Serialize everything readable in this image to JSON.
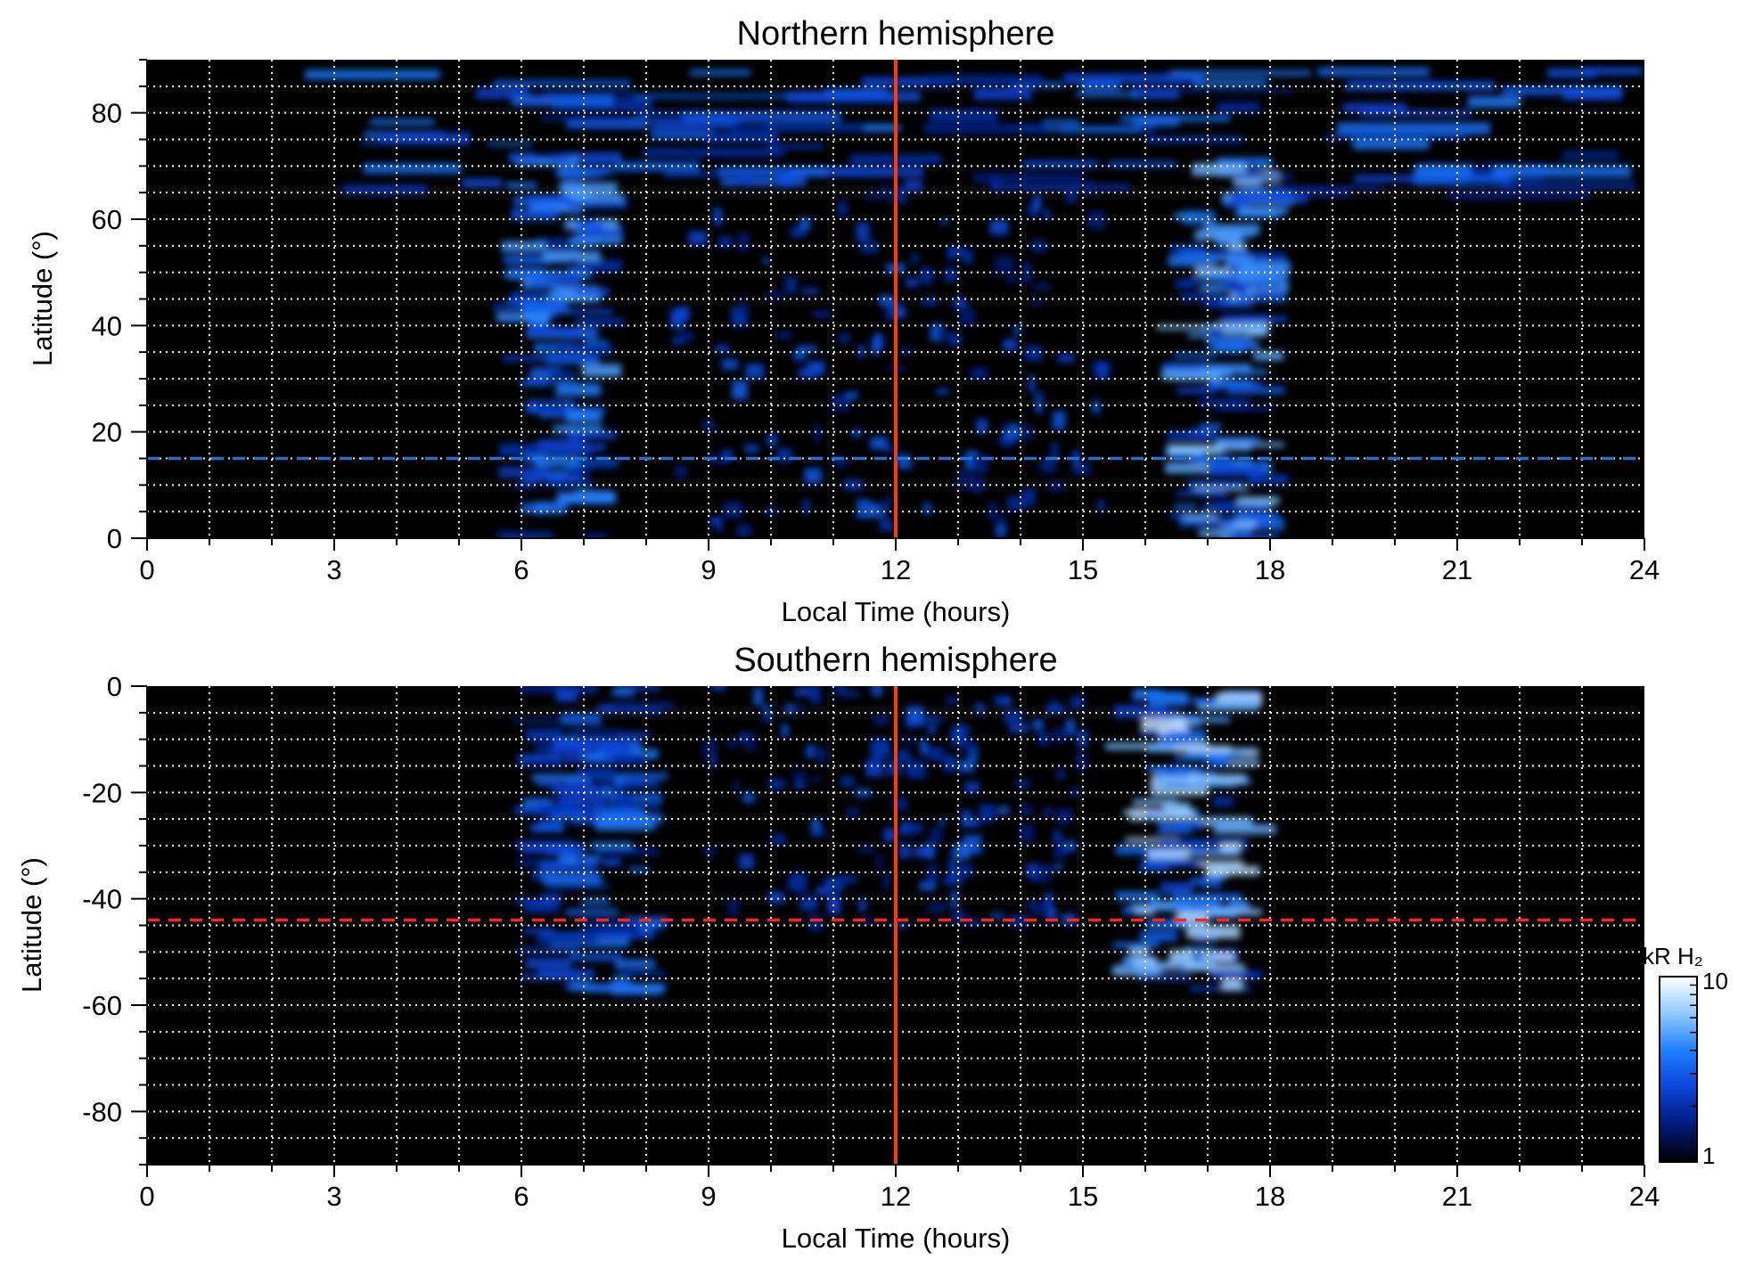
{
  "chart_data": [
    {
      "type": "heatmap",
      "title": "Northern hemisphere",
      "xlabel": "Local Time (hours)",
      "ylabel": "Latitude (°)",
      "xlim": [
        0,
        24
      ],
      "ylim": [
        0,
        90
      ],
      "x_tick_labels": [
        "0",
        "3",
        "6",
        "9",
        "12",
        "15",
        "18",
        "21",
        "24"
      ],
      "y_tick_labels": [
        "0",
        "20",
        "40",
        "60",
        "80"
      ],
      "grid": true,
      "background": "#000000",
      "reference_lines": [
        {
          "orientation": "vertical",
          "x": 12,
          "style": "solid",
          "color": "#ff3b00"
        },
        {
          "orientation": "horizontal",
          "y": 15,
          "style": "dashed",
          "color": "#1f6fd6"
        }
      ],
      "features": [
        {
          "name": "dawn band",
          "x": [
            6.0,
            7.3
          ],
          "y": [
            0,
            72
          ],
          "level": 7
        },
        {
          "name": "dusk band",
          "x": [
            16.6,
            18.0
          ],
          "y": [
            0,
            72
          ],
          "level": 8
        },
        {
          "name": "high-latitude arc",
          "x": [
            3.5,
            23.5
          ],
          "y": [
            64,
            88
          ],
          "level": 6
        },
        {
          "name": "noon patches",
          "x": [
            8.5,
            15.5
          ],
          "y": [
            0,
            68
          ],
          "level": 5
        }
      ]
    },
    {
      "type": "heatmap",
      "title": "Southern hemisphere",
      "xlabel": "Local Time (hours)",
      "ylabel": "Latitude (°)",
      "xlim": [
        0,
        24
      ],
      "ylim": [
        -90,
        0
      ],
      "x_tick_labels": [
        "0",
        "3",
        "6",
        "9",
        "12",
        "15",
        "18",
        "21",
        "24"
      ],
      "y_tick_labels": [
        "0",
        "-20",
        "-40",
        "-60",
        "-80"
      ],
      "grid": true,
      "background": "#000000",
      "reference_lines": [
        {
          "orientation": "vertical",
          "x": 12,
          "style": "solid",
          "color": "#ff3b00"
        },
        {
          "orientation": "horizontal",
          "y": -44,
          "style": "dashed",
          "color": "#ff2020"
        }
      ],
      "features": [
        {
          "name": "dawn band",
          "x": [
            6.2,
            8.0
          ],
          "y": [
            -57,
            0
          ],
          "level": 6
        },
        {
          "name": "dusk band",
          "x": [
            15.8,
            17.6
          ],
          "y": [
            -57,
            0
          ],
          "level": 9
        },
        {
          "name": "noon patches",
          "x": [
            9.0,
            15.0
          ],
          "y": [
            -45,
            0
          ],
          "level": 5
        }
      ]
    }
  ],
  "colorbar": {
    "label": "kR H₂",
    "min": 1,
    "max": 10,
    "scale": "log",
    "tick_labels": [
      "10",
      "1"
    ],
    "colors": [
      "#000000",
      "#001a7a",
      "#0a44d8",
      "#1e7dff",
      "#8fcaff",
      "#ffffff"
    ]
  }
}
